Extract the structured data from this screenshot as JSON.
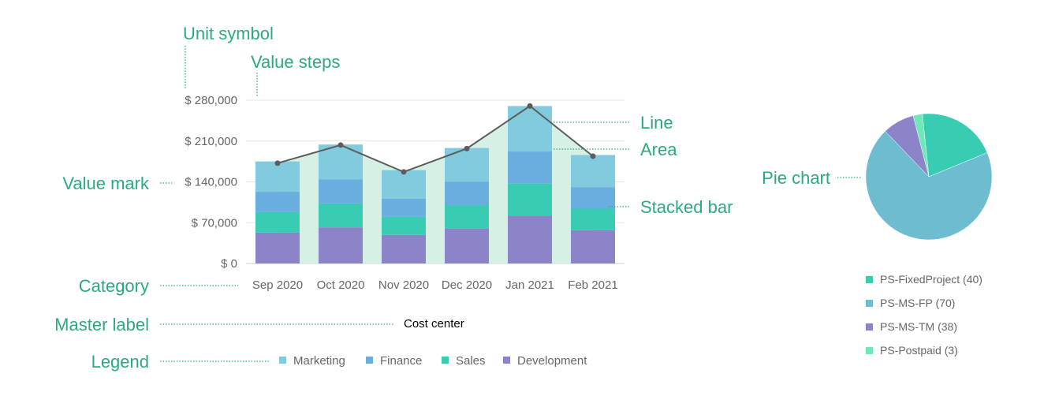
{
  "annotations": {
    "unit_symbol": "Unit symbol",
    "value_steps": "Value steps",
    "line": "Line",
    "area": "Area",
    "value_mark": "Value mark",
    "stacked_bar": "Stacked bar",
    "pie_chart": "Pie chart",
    "category": "Category",
    "master_label": "Master label",
    "legend": "Legend"
  },
  "colors": {
    "annotation": "#2baa7e",
    "line": "#5c5c5c",
    "area": "#d6f0e3",
    "grid": "#e6e6e6"
  },
  "chart_data": [
    {
      "type": "bar",
      "stacked": true,
      "categories": [
        "Sep 2020",
        "Oct 2020",
        "Nov 2020",
        "Dec 2020",
        "Jan 2021",
        "Feb 2021"
      ],
      "series": [
        {
          "name": "Development",
          "color": "#8b84c8",
          "values": [
            53000,
            62000,
            49000,
            60000,
            82000,
            57000
          ]
        },
        {
          "name": "Sales",
          "color": "#38cdb2",
          "values": [
            35000,
            41000,
            31000,
            40000,
            55000,
            37000
          ]
        },
        {
          "name": "Finance",
          "color": "#6aaee0",
          "values": [
            35000,
            41000,
            31000,
            40000,
            55000,
            37000
          ]
        },
        {
          "name": "Marketing",
          "color": "#82cbdf",
          "values": [
            52000,
            60000,
            49000,
            58000,
            78000,
            55000
          ]
        }
      ],
      "line": {
        "values": [
          172000,
          203000,
          157000,
          197000,
          270000,
          184000
        ]
      },
      "area": {
        "values": [
          172000,
          203000,
          157000,
          197000,
          270000,
          184000
        ]
      },
      "y_ticks": [
        "$ 0",
        "$ 70,000",
        "$ 140,000",
        "$ 210,000",
        "$ 280,000"
      ],
      "y_tick_values": [
        0,
        70000,
        140000,
        210000,
        280000
      ],
      "ylim": [
        0,
        280000
      ],
      "xlabel": "Cost center",
      "grid": true,
      "legend_position": "bottom"
    },
    {
      "type": "pie",
      "labels": [
        "PS-FixedProject (40)",
        "PS-MS-FP (70)",
        "PS-MS-TM (38)",
        "PS-Postpaid (3)"
      ],
      "values": [
        35,
        118,
        14,
        4
      ],
      "colors": [
        "#38cdb2",
        "#6ebcd0",
        "#8b84c8",
        "#6ee8b8"
      ],
      "start_angle_deg": -6,
      "legend_position": "bottom"
    }
  ]
}
